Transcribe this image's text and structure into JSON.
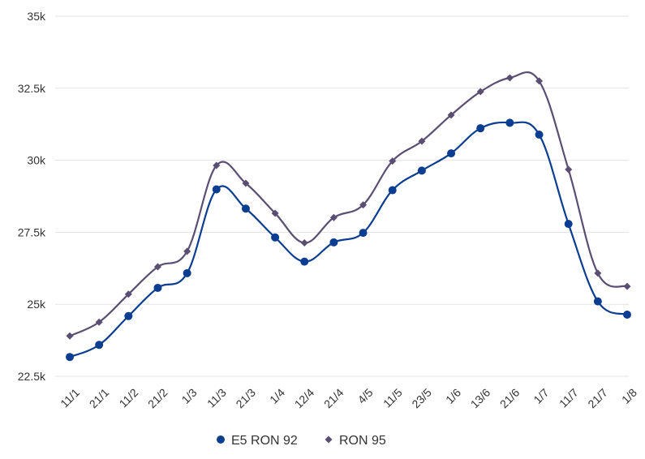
{
  "chart_data": {
    "type": "line",
    "title": "",
    "xlabel": "",
    "ylabel": "",
    "categories": [
      "11/1",
      "21/1",
      "11/2",
      "21/2",
      "1/3",
      "11/3",
      "21/3",
      "1/4",
      "12/4",
      "21/4",
      "4/5",
      "11/5",
      "23/5",
      "1/6",
      "13/6",
      "21/6",
      "1/7",
      "11/7",
      "21/7",
      "1/8"
    ],
    "ylim": [
      22500,
      35000
    ],
    "yticks": [
      22500,
      25000,
      27500,
      30000,
      32500,
      35000
    ],
    "ytick_labels": [
      "22.5k",
      "25k",
      "27.5k",
      "30k",
      "32.5k",
      "35k"
    ],
    "grid": true,
    "legend_position": "bottom",
    "series": [
      {
        "name": "E5 RON 92",
        "color": "#0b3d91",
        "marker": "circle",
        "values": [
          23170,
          23590,
          24590,
          25570,
          26080,
          28990,
          28320,
          27320,
          26480,
          27150,
          27480,
          28960,
          29640,
          30240,
          31110,
          31300,
          30890,
          27790,
          25100,
          24640
        ]
      },
      {
        "name": "RON 95",
        "color": "#5a4e72",
        "marker": "diamond",
        "values": [
          23900,
          24380,
          25350,
          26300,
          26840,
          29820,
          29200,
          28160,
          27130,
          28010,
          28450,
          29970,
          30660,
          31570,
          32380,
          32860,
          32750,
          29680,
          26080,
          25620
        ]
      }
    ]
  }
}
